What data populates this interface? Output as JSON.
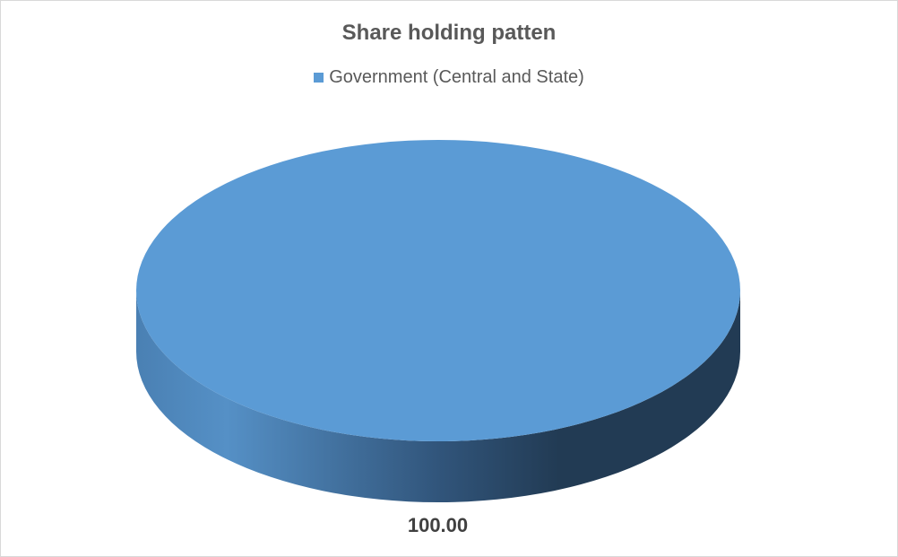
{
  "chart_data": {
    "type": "pie",
    "style": "3d",
    "title": "Share holding patten",
    "categories": [
      "Government (Central and State)"
    ],
    "values": [
      100.0
    ],
    "data_labels": [
      "100.00"
    ],
    "legend_position": "top",
    "colors": [
      "#5b9bd5"
    ]
  }
}
